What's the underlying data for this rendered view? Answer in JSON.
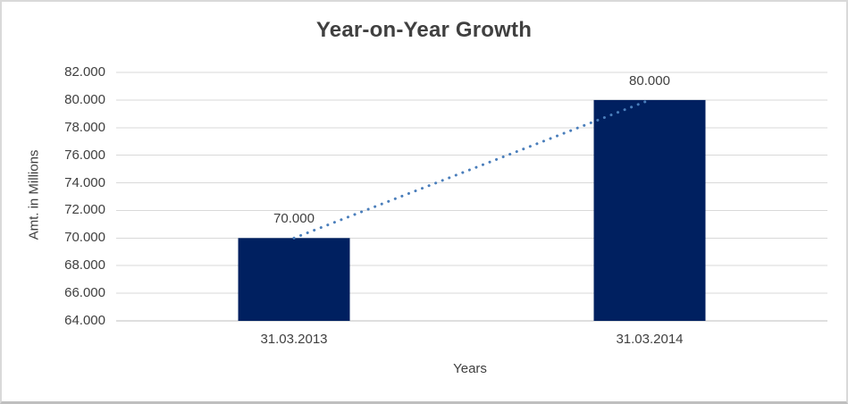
{
  "chart_data": {
    "type": "bar",
    "title": "Year-on-Year Growth",
    "xlabel": "Years",
    "ylabel": "Amt. in Millions",
    "categories": [
      "31.03.2013",
      "31.03.2014"
    ],
    "values": [
      70000,
      80000
    ],
    "data_labels": [
      "70.000",
      "80.000"
    ],
    "ylim": [
      64000,
      82000
    ],
    "ytick_step": 2000,
    "ytick_labels": [
      "64.000",
      "66.000",
      "68.000",
      "70.000",
      "72.000",
      "74.000",
      "76.000",
      "78.000",
      "80.000",
      "82.000"
    ],
    "grid": true,
    "legend": "none",
    "bar_color": "#002060",
    "trendline": {
      "style": "dotted",
      "color": "#4a7ebb",
      "from": 70000,
      "to": 80000
    },
    "gridline_color": "#d9d9d9",
    "axis_line_color": "#bfbfbf",
    "text_color": "#404040",
    "frame_border_color": "#d9d9d9",
    "frame_bottom_border_color": "#bfbfbf",
    "background_color": "#ffffff"
  }
}
